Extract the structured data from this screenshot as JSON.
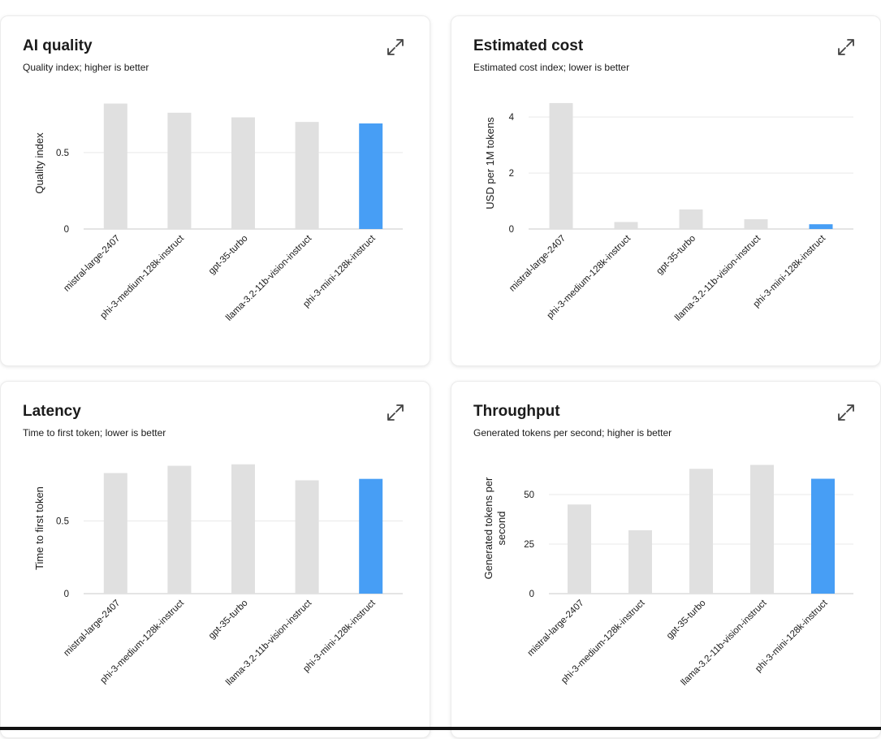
{
  "colors": {
    "bar_default": "#e0e0e0",
    "bar_highlight": "#479ef5",
    "grid": "#e9e9e9",
    "axis": "#c9c9c9"
  },
  "icons": {
    "expand": "expand-arrows-icon"
  },
  "chart_data": [
    {
      "type": "bar",
      "title": "AI quality",
      "subtitle": "Quality index; higher is better",
      "ylabel": [
        "Quality index"
      ],
      "categories": [
        "mistral-large-2407",
        "phi-3-medium-128k-instruct",
        "gpt-35-turbo",
        "llama-3.2-11b-vision-instruct",
        "phi-3-mini-128k-instruct"
      ],
      "values": [
        0.82,
        0.76,
        0.73,
        0.7,
        0.69
      ],
      "highlight_index": 4,
      "ylim": [
        0,
        0.86
      ],
      "yticks": [
        0,
        0.5
      ],
      "ytick_labels": [
        "0",
        "0.5"
      ],
      "grid": true
    },
    {
      "type": "bar",
      "title": "Estimated cost",
      "subtitle": "Estimated cost index; lower is better",
      "ylabel": [
        "USD per 1M tokens"
      ],
      "categories": [
        "mistral-large-2407",
        "phi-3-medium-128k-instruct",
        "gpt-35-turbo",
        "llama-3.2-11b-vision-instruct",
        "phi-3-mini-128k-instruct"
      ],
      "values": [
        4.5,
        0.25,
        0.7,
        0.35,
        0.17
      ],
      "highlight_index": 4,
      "ylim": [
        0,
        4.7
      ],
      "yticks": [
        0,
        2,
        4
      ],
      "ytick_labels": [
        "0",
        "2",
        "4"
      ],
      "grid": true
    },
    {
      "type": "bar",
      "title": "Latency",
      "subtitle": "Time to first token; lower is better",
      "ylabel": [
        "Time to first token"
      ],
      "categories": [
        "mistral-large-2407",
        "phi-3-medium-128k-instruct",
        "gpt-35-turbo",
        "llama-3.2-11b-vision-instruct",
        "phi-3-mini-128k-instruct"
      ],
      "values": [
        0.83,
        0.88,
        0.89,
        0.78,
        0.79
      ],
      "highlight_index": 4,
      "ylim": [
        0,
        0.9
      ],
      "yticks": [
        0,
        0.5
      ],
      "ytick_labels": [
        "0",
        "0.5"
      ],
      "grid": true
    },
    {
      "type": "bar",
      "title": "Throughput",
      "subtitle": "Generated tokens per second; higher is better",
      "ylabel": [
        "Generated tokens per",
        "second"
      ],
      "categories": [
        "mistral-large-2407",
        "phi-3-medium-128k-instruct",
        "gpt-35-turbo",
        "llama-3.2-11b-vision-instruct",
        "phi-3-mini-128k-instruct"
      ],
      "values": [
        45,
        32,
        63,
        65,
        58
      ],
      "highlight_index": 4,
      "ylim": [
        0,
        66
      ],
      "yticks": [
        0,
        25,
        50
      ],
      "ytick_labels": [
        "0",
        "25",
        "50"
      ],
      "grid": true
    }
  ]
}
